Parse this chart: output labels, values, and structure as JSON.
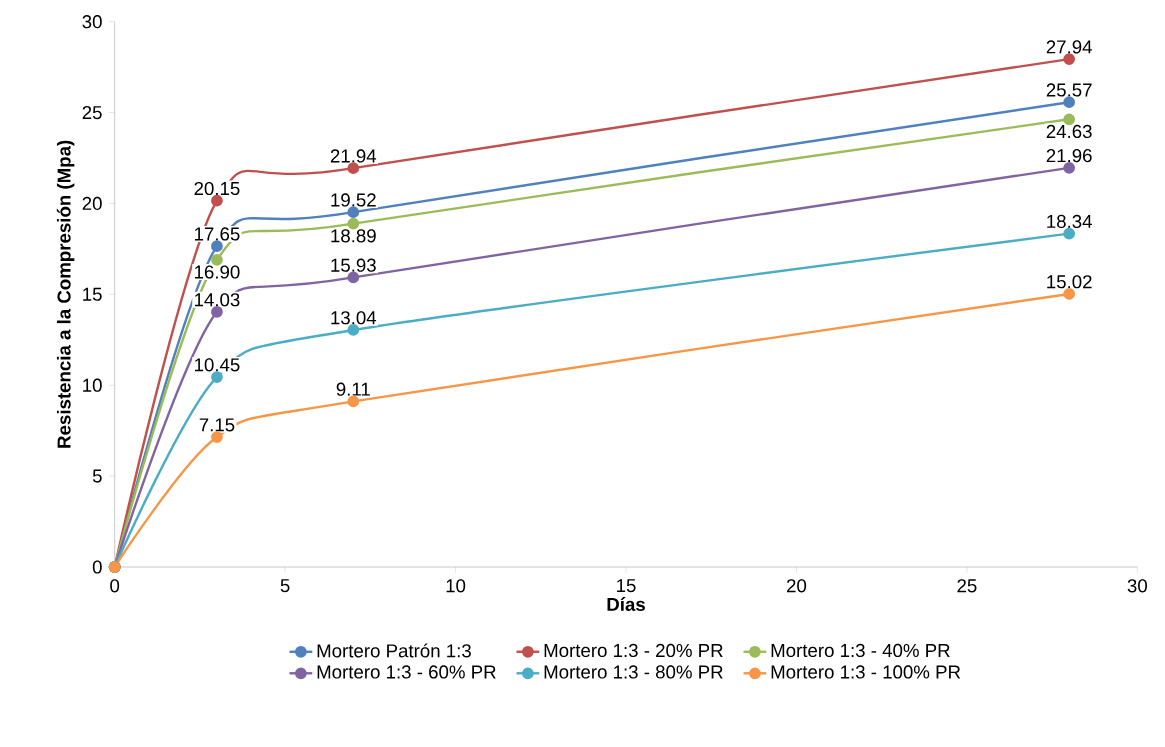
{
  "chart_data": {
    "type": "line",
    "xlabel": "Días",
    "ylabel": "Resistencia a la Compresión (Mpa)",
    "x": [
      0,
      3,
      7,
      28
    ],
    "series": [
      {
        "name": "Mortero Patrón 1:3",
        "color": "#4f81bd",
        "values": [
          0,
          17.65,
          19.52,
          25.57
        ],
        "value_labels": [
          null,
          "17.65",
          "19.52",
          "25.57"
        ]
      },
      {
        "name": "Mortero 1:3 - 20% PR",
        "color": "#c0504d",
        "values": [
          0,
          20.15,
          21.94,
          27.94
        ],
        "value_labels": [
          null,
          "20.15",
          "21.94",
          "27.94"
        ]
      },
      {
        "name": "Mortero 1:3 - 40% PR",
        "color": "#9bbb59",
        "values": [
          0,
          16.9,
          18.89,
          24.63
        ],
        "value_labels": [
          null,
          "16.90",
          "18.89",
          "24.63"
        ]
      },
      {
        "name": "Mortero 1:3 - 60% PR",
        "color": "#8064a2",
        "values": [
          0,
          14.03,
          15.93,
          21.96
        ],
        "value_labels": [
          null,
          "14.03",
          "15.93",
          "21.96"
        ]
      },
      {
        "name": "Mortero 1:3 - 80% PR",
        "color": "#4bacc6",
        "values": [
          0,
          10.45,
          13.04,
          18.34
        ],
        "value_labels": [
          null,
          "10.45",
          "13.04",
          "18.34"
        ]
      },
      {
        "name": "Mortero 1:3 - 100% PR",
        "color": "#f79646",
        "values": [
          0,
          7.15,
          9.11,
          15.02
        ],
        "value_labels": [
          null,
          "7.15",
          "9.11",
          "15.02"
        ]
      }
    ],
    "xlim": [
      0,
      30
    ],
    "xticks": [
      0,
      5,
      10,
      15,
      20,
      25,
      30
    ],
    "ylim": [
      0,
      30
    ],
    "yticks": [
      0,
      5,
      10,
      15,
      20,
      25,
      30
    ],
    "grid": false,
    "legend": "bottom",
    "marker": "circle",
    "line_style": "solid"
  }
}
